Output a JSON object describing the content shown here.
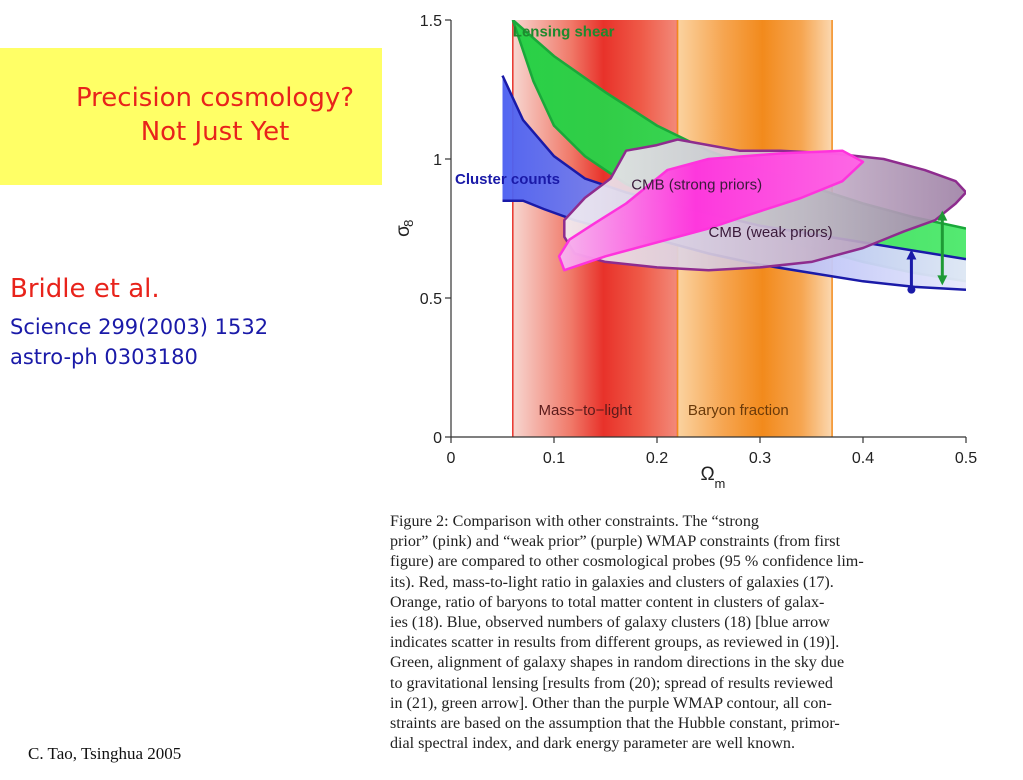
{
  "slide": {
    "title_lines": [
      "Precision cosmology?",
      "Not Just Yet"
    ],
    "reference": {
      "author": "Bridle et al.",
      "journal": "Science 299(2003) 1532",
      "arxiv": "astro-ph 0303180"
    },
    "footer": "C. Tao,  Tsinghua 2005",
    "colors": {
      "title": "#e8231b",
      "reference": "#1a1aa8",
      "title_box": "#ffff66"
    }
  },
  "chart_data": {
    "type": "area",
    "xlabel": "Ω_m",
    "ylabel": "σ_8",
    "xlim": [
      0,
      0.5
    ],
    "ylim": [
      0,
      1.5
    ],
    "xticks": [
      0,
      0.1,
      0.2,
      0.3,
      0.4,
      0.5
    ],
    "xtick_labels": [
      "0",
      "0.1",
      "0.2",
      "0.3",
      "0.4",
      "0.5"
    ],
    "yticks": [
      0,
      0.5,
      1,
      1.5
    ],
    "ytick_labels": [
      "0",
      "0.5",
      "1",
      "1.5"
    ],
    "grid": false,
    "constraints": [
      {
        "name": "Mass-to-light",
        "kind": "vertical_band",
        "x_range": [
          0.06,
          0.22
        ],
        "color": "#e8322a"
      },
      {
        "name": "Baryon fraction",
        "kind": "vertical_band",
        "x_range": [
          0.22,
          0.37
        ],
        "color": "#f28a1c"
      },
      {
        "name": "Lensing shear",
        "kind": "band",
        "color": "#2bd84a",
        "upper": [
          [
            0.06,
            1.5
          ],
          [
            0.1,
            1.37
          ],
          [
            0.15,
            1.24
          ],
          [
            0.2,
            1.12
          ],
          [
            0.25,
            1.03
          ],
          [
            0.3,
            0.96
          ],
          [
            0.35,
            0.9
          ],
          [
            0.4,
            0.84
          ],
          [
            0.45,
            0.79
          ],
          [
            0.5,
            0.75
          ]
        ],
        "lower": [
          [
            0.5,
            0.56
          ],
          [
            0.45,
            0.59
          ],
          [
            0.4,
            0.63
          ],
          [
            0.35,
            0.68
          ],
          [
            0.3,
            0.73
          ],
          [
            0.25,
            0.79
          ],
          [
            0.2,
            0.86
          ],
          [
            0.17,
            0.91
          ],
          [
            0.13,
            1.01
          ],
          [
            0.1,
            1.12
          ],
          [
            0.08,
            1.28
          ],
          [
            0.06,
            1.5
          ]
        ]
      },
      {
        "name": "Cluster counts",
        "kind": "band",
        "color": "#5b6cf0",
        "upper": [
          [
            0.05,
            1.3
          ],
          [
            0.07,
            1.14
          ],
          [
            0.1,
            1.01
          ],
          [
            0.13,
            0.93
          ],
          [
            0.17,
            0.88
          ],
          [
            0.22,
            0.83
          ],
          [
            0.3,
            0.76
          ],
          [
            0.4,
            0.7
          ],
          [
            0.5,
            0.64
          ]
        ],
        "lower": [
          [
            0.5,
            0.53
          ],
          [
            0.45,
            0.54
          ],
          [
            0.4,
            0.56
          ],
          [
            0.35,
            0.59
          ],
          [
            0.3,
            0.62
          ],
          [
            0.25,
            0.66
          ],
          [
            0.2,
            0.71
          ],
          [
            0.16,
            0.74
          ],
          [
            0.12,
            0.78
          ],
          [
            0.09,
            0.82
          ],
          [
            0.07,
            0.85
          ],
          [
            0.05,
            0.85
          ]
        ]
      },
      {
        "name": "CMB (weak priors)",
        "kind": "contour",
        "color": "#8e2c8e",
        "points": [
          [
            0.11,
            0.78
          ],
          [
            0.13,
            0.86
          ],
          [
            0.155,
            0.93
          ],
          [
            0.17,
            1.03
          ],
          [
            0.2,
            1.05
          ],
          [
            0.22,
            1.07
          ],
          [
            0.25,
            1.05
          ],
          [
            0.28,
            1.03
          ],
          [
            0.32,
            1.03
          ],
          [
            0.37,
            1.02
          ],
          [
            0.42,
            1.0
          ],
          [
            0.46,
            0.96
          ],
          [
            0.49,
            0.92
          ],
          [
            0.5,
            0.88
          ],
          [
            0.49,
            0.84
          ],
          [
            0.47,
            0.78
          ],
          [
            0.44,
            0.74
          ],
          [
            0.4,
            0.68
          ],
          [
            0.35,
            0.63
          ],
          [
            0.3,
            0.61
          ],
          [
            0.25,
            0.6
          ],
          [
            0.2,
            0.61
          ],
          [
            0.15,
            0.63
          ],
          [
            0.12,
            0.66
          ],
          [
            0.11,
            0.72
          ]
        ]
      },
      {
        "name": "CMB (strong priors)",
        "kind": "contour",
        "color": "#ff33dd",
        "points": [
          [
            0.11,
            0.6
          ],
          [
            0.105,
            0.65
          ],
          [
            0.115,
            0.71
          ],
          [
            0.14,
            0.77
          ],
          [
            0.17,
            0.84
          ],
          [
            0.19,
            0.9
          ],
          [
            0.21,
            0.96
          ],
          [
            0.25,
            1.0
          ],
          [
            0.32,
            1.02
          ],
          [
            0.38,
            1.03
          ],
          [
            0.4,
            0.99
          ],
          [
            0.38,
            0.92
          ],
          [
            0.34,
            0.86
          ],
          [
            0.29,
            0.8
          ],
          [
            0.25,
            0.75
          ],
          [
            0.2,
            0.7
          ],
          [
            0.15,
            0.65
          ]
        ]
      }
    ],
    "scatter_arrows": [
      {
        "name": "blue arrow",
        "x": 0.447,
        "y_range": [
          0.53,
          0.66
        ],
        "color": "#1a1aa8"
      },
      {
        "name": "green arrow",
        "x": 0.477,
        "y_range": [
          0.56,
          0.8
        ],
        "color": "#1e9a35"
      }
    ],
    "annotations": [
      "Lensing shear",
      "Cluster counts",
      "CMB (strong priors)",
      "CMB (weak priors)",
      "Mass−to−light",
      "Baryon fraction"
    ]
  },
  "figure_caption": {
    "lines": [
      "Figure 2:    Comparison with other constraints.  The “strong",
      "prior” (pink) and “weak prior” (purple) WMAP constraints (from first",
      "figure) are compared to other cosmological probes (95 % confidence lim-",
      "its).  Red, mass-to-light ratio in galaxies and clusters of galaxies (17).",
      "Orange, ratio of baryons to total matter content in clusters of galax-",
      "ies (18).  Blue, observed numbers of galaxy clusters (18) [blue arrow",
      "indicates scatter in results from different groups, as reviewed in (19)].",
      "Green, alignment of galaxy shapes in random directions in the sky due",
      "to gravitational lensing [results from (20); spread of results reviewed",
      "in (21), green arrow].  Other than the purple WMAP contour, all con-",
      "straints are based on the assumption that the Hubble constant, primor-",
      "dial spectral index, and dark energy parameter are well known."
    ]
  }
}
